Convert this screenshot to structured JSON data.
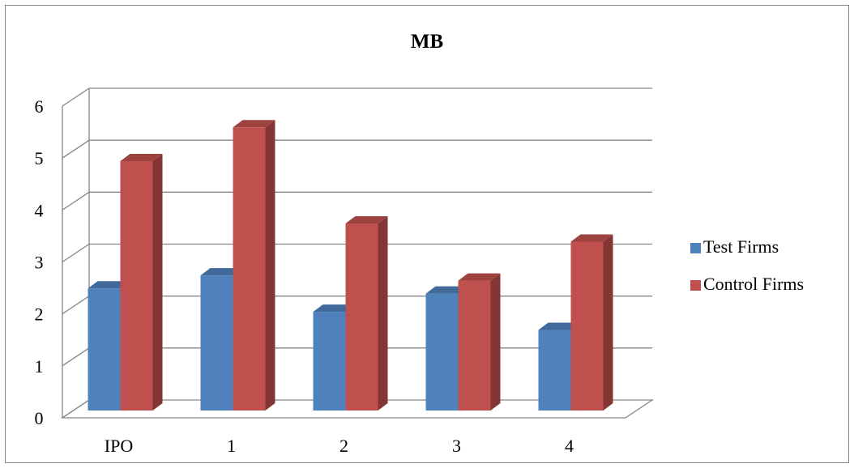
{
  "chart_data": {
    "type": "bar",
    "title": "MB",
    "xlabel": "",
    "ylabel": "",
    "categories": [
      "IPO",
      "1",
      "2",
      "3",
      "4"
    ],
    "series": [
      {
        "name": "Test Firms",
        "values": [
          2.35,
          2.6,
          1.9,
          2.25,
          1.55
        ],
        "color": "#4F81BD"
      },
      {
        "name": "Control Firms",
        "values": [
          4.8,
          5.45,
          3.6,
          2.5,
          3.25
        ],
        "color": "#C0504D"
      }
    ],
    "ylim": [
      0,
      6
    ],
    "yticks": [
      "0",
      "1",
      "2",
      "3",
      "4",
      "5",
      "6"
    ],
    "grid": true,
    "legend_position": "right",
    "style": "3d-clustered-column"
  }
}
